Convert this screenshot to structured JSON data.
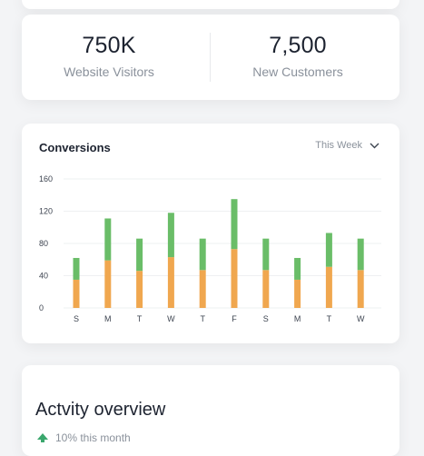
{
  "stats": [
    {
      "value": "750K",
      "label": "Website Visitors"
    },
    {
      "value": "7,500",
      "label": "New Customers"
    }
  ],
  "conversions": {
    "title": "Conversions",
    "period": "This Week"
  },
  "activity": {
    "title": "Actvity overview",
    "note": "10% this month"
  },
  "colors": {
    "primary_segment": "#f0a74f",
    "secondary_segment": "#6abd68",
    "trend_icon": "#3aa76d"
  },
  "icons": {
    "period_dropdown": "chevron-down-icon",
    "trend": "trend-up-icon"
  },
  "chart_data": {
    "type": "bar",
    "stacked": true,
    "categories": [
      "S",
      "M",
      "T",
      "W",
      "T",
      "F",
      "S",
      "M",
      "T",
      "W"
    ],
    "series": [
      {
        "values": [
          35,
          59,
          46,
          63,
          47,
          73,
          47,
          35,
          51,
          47
        ]
      },
      {
        "values": [
          27,
          52,
          40,
          55,
          39,
          62,
          39,
          27,
          42,
          39
        ]
      }
    ],
    "ylim": [
      0,
      160
    ],
    "yticks": [
      0,
      40,
      80,
      120,
      160
    ],
    "grid": true
  }
}
